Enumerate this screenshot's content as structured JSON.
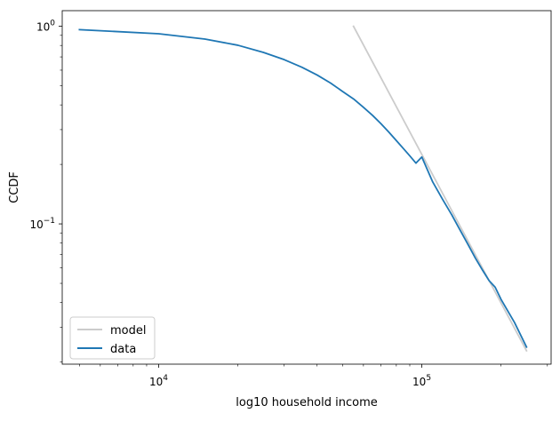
{
  "chart_data": {
    "type": "line",
    "title": "",
    "xlabel": "log10 household income",
    "ylabel": "CCDF",
    "xscale": "log",
    "yscale": "log",
    "xlim": [
      4300,
      310000
    ],
    "ylim": [
      0.0195,
      1.2
    ],
    "grid": false,
    "legend_position": "lower-left",
    "x_ticks": [
      {
        "value": 10000,
        "base": "10",
        "exp": "4"
      },
      {
        "value": 100000,
        "base": "10",
        "exp": "5"
      }
    ],
    "y_ticks": [
      {
        "value": 1,
        "base": "10",
        "exp": "0"
      },
      {
        "value": 0.1,
        "base": "10",
        "exp": "−1"
      }
    ],
    "series": [
      {
        "name": "model",
        "color": "#cccccc",
        "x": [
          55000,
          250000
        ],
        "y": [
          1.0,
          0.0228
        ]
      },
      {
        "name": "data",
        "color": "#1f77b4",
        "x": [
          5000,
          10000,
          15000,
          20000,
          25000,
          30000,
          35000,
          40000,
          45000,
          50000,
          55000,
          60000,
          65000,
          70000,
          75000,
          80000,
          85000,
          90000,
          95000,
          100000,
          110000,
          120000,
          130000,
          140000,
          150000,
          160000,
          170000,
          180000,
          190000,
          200000,
          225000,
          250000
        ],
        "y": [
          0.962,
          0.917,
          0.862,
          0.802,
          0.738,
          0.678,
          0.621,
          0.567,
          0.516,
          0.468,
          0.429,
          0.389,
          0.354,
          0.321,
          0.291,
          0.264,
          0.241,
          0.221,
          0.203,
          0.218,
          0.163,
          0.133,
          0.111,
          0.0926,
          0.0784,
          0.0669,
          0.0584,
          0.0517,
          0.0478,
          0.0415,
          0.0317,
          0.0238
        ]
      }
    ]
  }
}
